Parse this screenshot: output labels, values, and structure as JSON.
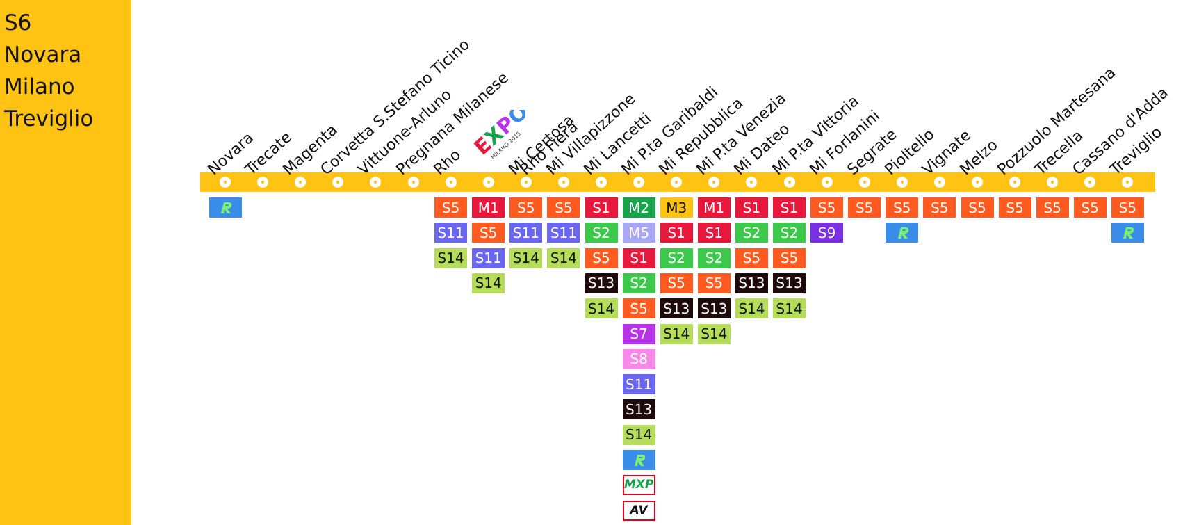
{
  "sidebar": {
    "line_code": "S6",
    "route": [
      "Novara",
      "Milano",
      "Treviglio"
    ],
    "background": "#FFC313"
  },
  "line_color": "#FFC313",
  "expo_logo": {
    "text": "EXPO",
    "subtitle": "MILANO 2015"
  },
  "service_colors": {
    "S1": "#E8173C",
    "S2": "#3CC84A",
    "S5": "#FF5A1F",
    "S7": "#B833E8",
    "S8": "#F78AE6",
    "S9": "#7A2FE0",
    "S11": "#6B66F0",
    "S13": "#1E0A0A",
    "S14": "#B5DD5A",
    "M1": "#E8173C",
    "M2": "#16A34A",
    "M3": "#FFC313",
    "M5": "#A9A6F5",
    "R": "#3A8DE8"
  },
  "stations": [
    {
      "name": "Novara",
      "connections": [
        "R"
      ]
    },
    {
      "name": "Trecate",
      "connections": []
    },
    {
      "name": "Magenta",
      "connections": []
    },
    {
      "name": "Corvetta S.Stefano Ticino",
      "connections": []
    },
    {
      "name": "Vittuone-Arluno",
      "connections": []
    },
    {
      "name": "Pregnana Milanese",
      "connections": []
    },
    {
      "name": "Rho",
      "connections": [
        "S5",
        "S11",
        "S14"
      ]
    },
    {
      "name": "Rho Fiera",
      "expo": true,
      "connections": [
        "M1",
        "S5",
        "S11",
        "S14"
      ]
    },
    {
      "name": "Mi Certosa",
      "connections": [
        "S5",
        "S11",
        "S14"
      ]
    },
    {
      "name": "Mi Villapizzone",
      "connections": [
        "S5",
        "S11",
        "S14"
      ]
    },
    {
      "name": "Mi Lancetti",
      "connections": [
        "S1",
        "S2",
        "S5",
        "S13",
        "S14"
      ]
    },
    {
      "name": "Mi P.ta Garibaldi",
      "connections": [
        "M2",
        "M5",
        "S1",
        "S2",
        "S5",
        "S7",
        "S8",
        "S11",
        "S13",
        "S14",
        "R",
        "MXP",
        "AV"
      ]
    },
    {
      "name": "Mi Repubblica",
      "connections": [
        "M3",
        "S1",
        "S2",
        "S5",
        "S13",
        "S14"
      ]
    },
    {
      "name": "Mi P.ta Venezia",
      "connections": [
        "M1",
        "S1",
        "S2",
        "S5",
        "S13",
        "S14"
      ]
    },
    {
      "name": "Mi Dateo",
      "connections": [
        "S1",
        "S2",
        "S5",
        "S13",
        "S14"
      ]
    },
    {
      "name": "Mi P.ta Vittoria",
      "connections": [
        "S1",
        "S2",
        "S5",
        "S13",
        "S14"
      ]
    },
    {
      "name": "Mi Forlanini",
      "connections": [
        "S5",
        "S9"
      ]
    },
    {
      "name": "Segrate",
      "connections": [
        "S5"
      ]
    },
    {
      "name": "Pioltello",
      "connections": [
        "S5",
        "R"
      ]
    },
    {
      "name": "Vignate",
      "connections": [
        "S5"
      ]
    },
    {
      "name": "Melzo",
      "connections": [
        "S5"
      ]
    },
    {
      "name": "Pozzuolo Martesana",
      "connections": [
        "S5"
      ]
    },
    {
      "name": "Trecella",
      "connections": [
        "S5"
      ]
    },
    {
      "name": "Cassano d'Adda",
      "connections": [
        "S5"
      ]
    },
    {
      "name": "Treviglio",
      "connections": [
        "S5",
        "R"
      ]
    }
  ]
}
